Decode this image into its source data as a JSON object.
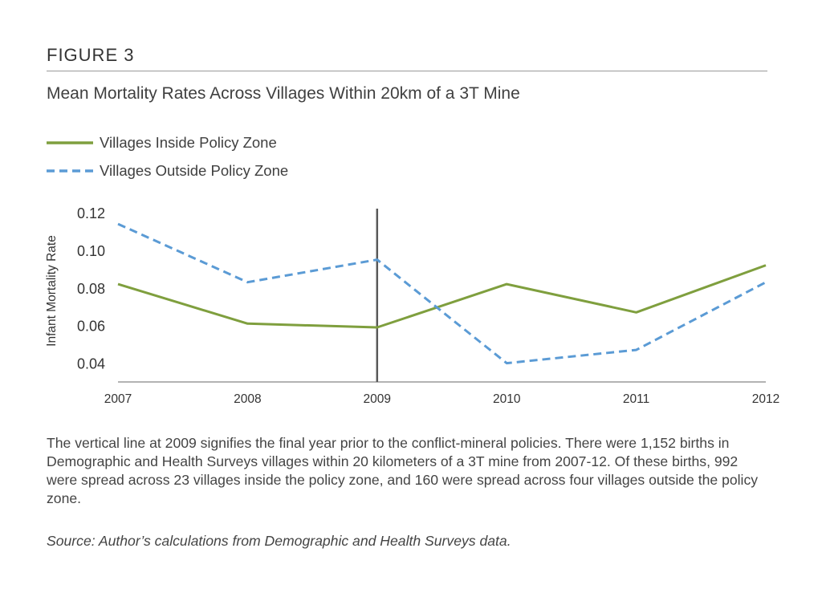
{
  "figure_label": "FIGURE 3",
  "title": "Mean Mortality Rates Across Villages Within 20km of a 3T Mine",
  "colors": {
    "inside": "#7f9f3e",
    "outside": "#5b9bd5",
    "axis": "#9a9a9a",
    "vline": "#595959"
  },
  "chart_data": {
    "type": "line",
    "title": "Mean Mortality Rates Across Villages Within 20km of a 3T Mine",
    "xlabel": "",
    "ylabel": "Infant Mortality Rate",
    "x": [
      2007,
      2008,
      2009,
      2010,
      2011,
      2012
    ],
    "x_tick_labels": [
      "2007",
      "2008",
      "2009",
      "2010",
      "2011",
      "2012"
    ],
    "y_tick_labels": [
      "0.12",
      "0.10",
      "0.08",
      "0.06",
      "0.04"
    ],
    "y_ticks": [
      0.12,
      0.1,
      0.08,
      0.06,
      0.04
    ],
    "ylim": [
      0.03,
      0.12
    ],
    "grid": false,
    "legend_position": "top-left",
    "vertical_line_x": 2009,
    "series": [
      {
        "name": "Villages Inside Policy Zone",
        "style": "solid",
        "values": [
          0.082,
          0.061,
          0.059,
          0.082,
          0.067,
          0.092
        ]
      },
      {
        "name": "Villages Outside Policy Zone",
        "style": "dashed",
        "values": [
          0.114,
          0.083,
          0.095,
          0.04,
          0.047,
          0.083
        ]
      }
    ]
  },
  "caption": "The vertical line at 2009 signifies the final year prior to the conflict-mineral policies. There were 1,152 births in Demographic and Health Surveys villages within 20 kilometers of a 3T mine from 2007-12. Of these births, 992 were spread across 23 villages inside the policy zone, and 160 were spread across four villages outside the policy zone.",
  "source": "Source: Author’s calculations from Demographic and Health Surveys data."
}
